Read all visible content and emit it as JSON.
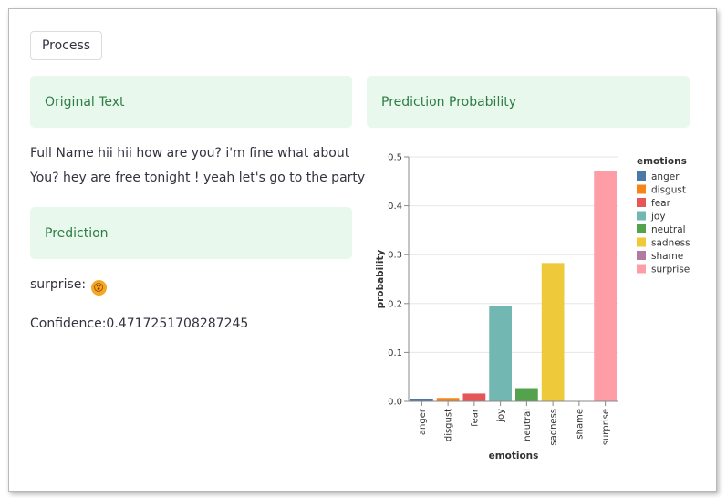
{
  "process_button": {
    "label": "Process"
  },
  "cards": {
    "original_text": "Original Text",
    "prediction_probability": "Prediction Probability",
    "prediction": "Prediction"
  },
  "original_text": {
    "line1": "Full Name hii hii how are you? i'm fine what about",
    "line2": "You? hey are free tonight ! yeah let's go to the party"
  },
  "prediction": {
    "label": "surprise:",
    "emoji_icon": "astonished-face-icon",
    "emoji_glyph": "😮"
  },
  "confidence": {
    "text": "Confidence:0.4717251708287245"
  },
  "chart_data": {
    "type": "bar",
    "categories": [
      "anger",
      "disgust",
      "fear",
      "joy",
      "neutral",
      "sadness",
      "shame",
      "surprise"
    ],
    "values": [
      0.004,
      0.007,
      0.016,
      0.195,
      0.027,
      0.283,
      0.0,
      0.4717251708287245
    ],
    "colors": [
      "#4c78a8",
      "#f58518",
      "#e45756",
      "#72b7b2",
      "#54a24b",
      "#eeca3b",
      "#b279a2",
      "#ff9da6"
    ],
    "xlabel": "emotions",
    "ylabel": "probability",
    "ylim": [
      0,
      0.5
    ],
    "yticks": [
      "0.0",
      "0.1",
      "0.2",
      "0.3",
      "0.4",
      "0.5"
    ],
    "grid": true,
    "legend": {
      "title": "emotions",
      "placement": "right"
    }
  }
}
